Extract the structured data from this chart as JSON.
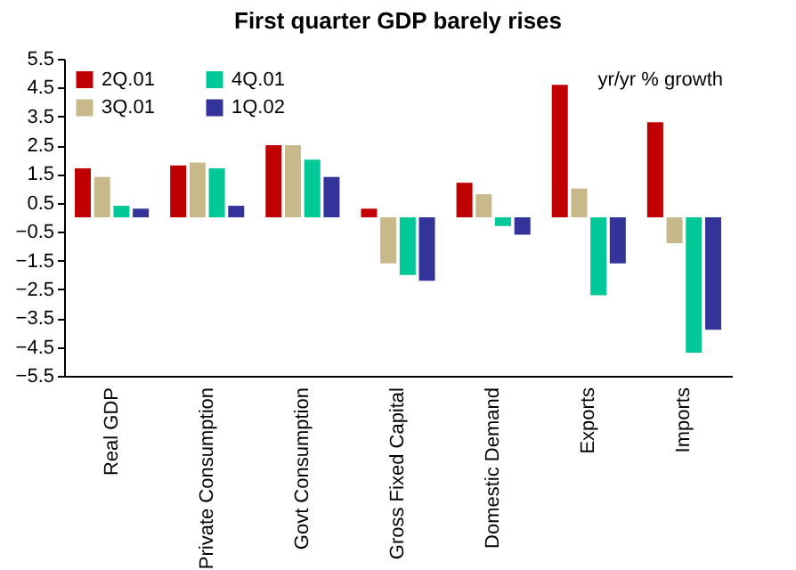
{
  "chart_data": {
    "type": "bar",
    "title": "First quarter GDP barely rises",
    "annotations": [
      "yr/yr % growth"
    ],
    "categories": [
      "Real GDP",
      "Private Consumption",
      "Govt Consumption",
      "Gross Fixed Capital",
      "Domestic Demand",
      "Exports",
      "Imports"
    ],
    "series": [
      {
        "name": "2Q.01",
        "color": "#c00000",
        "values": [
          1.7,
          1.8,
          2.5,
          0.3,
          1.2,
          4.6,
          3.3
        ]
      },
      {
        "name": "3Q.01",
        "color": "#c8b98a",
        "values": [
          1.4,
          1.9,
          2.5,
          -1.6,
          0.8,
          1.0,
          -0.9
        ]
      },
      {
        "name": "4Q.01",
        "color": "#00c896",
        "values": [
          0.4,
          1.7,
          2.0,
          -2.0,
          -0.3,
          -2.7,
          -4.7
        ]
      },
      {
        "name": "1Q.02",
        "color": "#333399",
        "values": [
          0.3,
          0.4,
          1.4,
          -2.2,
          -0.6,
          -1.6,
          -3.9
        ]
      }
    ],
    "ylim": [
      -5.5,
      5.5
    ],
    "yticks": [
      -5.5,
      -4.5,
      -3.5,
      -2.5,
      -1.5,
      -0.5,
      0.5,
      1.5,
      2.5,
      3.5,
      4.5,
      5.5
    ],
    "grid": false,
    "legend": "top left"
  }
}
